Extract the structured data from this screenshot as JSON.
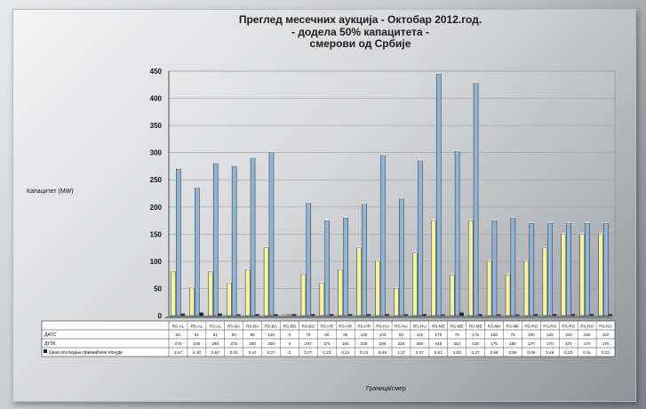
{
  "chart_data": {
    "type": "bar",
    "title_lines": [
      "Преглед месечних аукција - Октобар 2012.год.",
      "- додела 50% капацитета -",
      "смерови од Србије"
    ],
    "ylabel": "Капацитет (MW)",
    "xlabel": "Граница/смер",
    "ylim": [
      0,
      450
    ],
    "yticks": [
      "0",
      "50",
      "100",
      "150",
      "200",
      "250",
      "300",
      "350",
      "400",
      "450"
    ],
    "categories": [
      "RS-AL",
      "RS-AL",
      "RS-AL",
      "RS-BA",
      "RS-BA",
      "RS-BA",
      "RS-BG",
      "RS-BG",
      "RS-HR",
      "RS-HR",
      "RS-HR",
      "RS-HU",
      "RS-HU",
      "RS-HU",
      "RS-ME",
      "RS-ME",
      "RS-ME",
      "RS-MK",
      "RS-MK",
      "RS-RO",
      "RS-RO",
      "RS-RO",
      "RS-RO",
      "RS-RO"
    ],
    "series": [
      {
        "name": "ДАТС",
        "color": "#f4f2a6",
        "values": [
          81,
          51,
          81,
          60,
          85,
          125,
          0,
          76,
          60,
          85,
          125,
          100,
          50,
          115,
          175,
          75,
          175,
          100,
          75,
          100,
          125,
          150,
          150,
          150
        ]
      },
      {
        "name": "ДУЗК",
        "color": "#8fb4d6",
        "values": [
          270,
          235,
          280,
          275,
          290,
          300,
          0,
          207,
          175,
          180,
          205,
          295,
          215,
          285,
          445,
          302,
          428,
          175,
          180,
          170,
          170,
          170,
          170,
          170
        ]
      },
      {
        "name": "Цена последње прихваћене понуде",
        "color": "#1a1a1a",
        "values": [
          2.47,
          4.4,
          2.57,
          0.81,
          0.47,
          0.27,
          0,
          0.27,
          0.23,
          0.22,
          0.13,
          0.49,
          1.17,
          0.27,
          0.61,
          4.5,
          0.27,
          0.99,
          0.85,
          0.49,
          0.45,
          0.23,
          0.31,
          0.31
        ]
      }
    ],
    "table": {
      "row_labels": [
        "ДАТС",
        "ДУЗК",
        "Цена последње прихваћене понуде"
      ],
      "rows": [
        [
          "81",
          "51",
          "81",
          "60",
          "85",
          "125",
          "0",
          "76",
          "60",
          "85",
          "125",
          "100",
          "50",
          "115",
          "175",
          "75",
          "175",
          "100",
          "75",
          "100",
          "125",
          "150",
          "150",
          "150"
        ],
        [
          "270",
          "235",
          "280",
          "275",
          "290",
          "300",
          "0",
          "207",
          "175",
          "180",
          "205",
          "295",
          "215",
          "285",
          "445",
          "302",
          "428",
          "175",
          "180",
          "170",
          "170",
          "170",
          "170",
          "170"
        ],
        [
          "2.47",
          "4.40",
          "2.57",
          "0.81",
          "0.47",
          "0.27",
          "0",
          "0.27",
          "0.23",
          "0.22",
          "0.13",
          "0.49",
          "1.17",
          "0.27",
          "0.61",
          "4.50",
          "0.27",
          "0.99",
          "0.85",
          "0.49",
          "0.45",
          "0.23",
          "0.31",
          "0.31"
        ]
      ]
    },
    "grid": true,
    "legend": "in-table"
  }
}
